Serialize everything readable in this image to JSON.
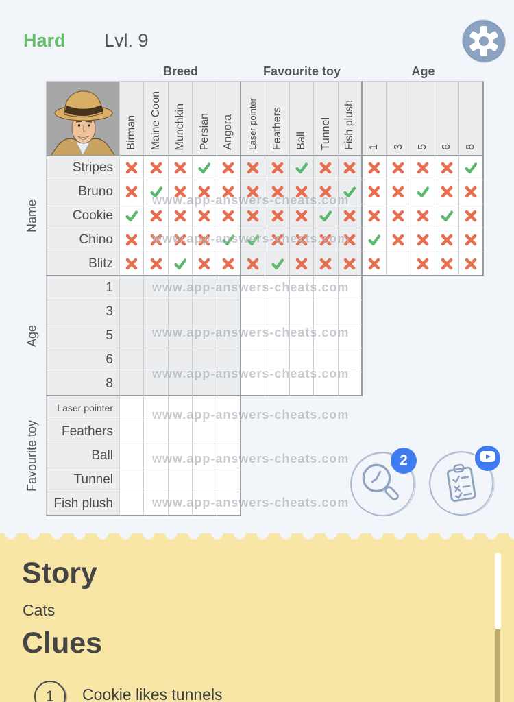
{
  "top": {
    "difficulty": "Hard",
    "level": "Lvl. 9"
  },
  "watermark": "www.app-answers-cheats.com",
  "colors": {
    "accent_green": "#68bf6b",
    "x_mark": "#e76f50",
    "check_mark": "#5cb96b",
    "badge_blue": "#3f7cf0",
    "panel_yellow": "#f7e6a6",
    "scrollbar_tan": "#bfab6e"
  },
  "icons": {
    "settings": "gear-icon",
    "avatar": "detective-avatar",
    "hint": "magnifier-clock-icon",
    "tasks": "clipboard-checklist-icon",
    "tasks_badge": "play-icon"
  },
  "grid": {
    "col_groups": [
      {
        "label": "Breed",
        "cols": [
          "Birman",
          "Maine Coon",
          "Munchkin",
          "Persian",
          "Angora"
        ]
      },
      {
        "label": "Favourite toy",
        "cols": [
          "Laser pointer",
          "Feathers",
          "Ball",
          "Tunnel",
          "Fish plush"
        ]
      },
      {
        "label": "Age",
        "cols": [
          "1",
          "3",
          "5",
          "6",
          "8"
        ]
      }
    ],
    "row_groups": [
      {
        "key": "name",
        "label": "Name",
        "rows": [
          "Stripes",
          "Bruno",
          "Cookie",
          "Chino",
          "Blitz"
        ]
      },
      {
        "key": "age",
        "label": "Age",
        "rows": [
          "1",
          "3",
          "5",
          "6",
          "8"
        ]
      },
      {
        "key": "toy",
        "label": "Favourite toy",
        "rows": [
          "Laser pointer",
          "Feathers",
          "Ball",
          "Tunnel",
          "Fish plush"
        ]
      }
    ],
    "marks": {
      "name": [
        [
          "x",
          "x",
          "x",
          "v",
          "x",
          "x",
          "x",
          "v",
          "x",
          "x",
          "x",
          "x",
          "x",
          "x",
          "v"
        ],
        [
          "x",
          "v",
          "x",
          "x",
          "x",
          "x",
          "x",
          "x",
          "x",
          "v",
          "x",
          "x",
          "v",
          "x",
          "x"
        ],
        [
          "v",
          "x",
          "x",
          "x",
          "x",
          "x",
          "x",
          "x",
          "v",
          "x",
          "x",
          "x",
          "x",
          "v",
          "x"
        ],
        [
          "x",
          "x",
          "x",
          "x",
          "v",
          "v",
          "x",
          "x",
          "x",
          "x",
          "v",
          "x",
          "x",
          "x",
          "x"
        ],
        [
          "x",
          "x",
          "v",
          "x",
          "x",
          "x",
          "v",
          "x",
          "x",
          "x",
          "x",
          "",
          "x",
          "x",
          "x"
        ]
      ],
      "age": [
        [
          "",
          "",
          "",
          "",
          "",
          "",
          "",
          "",
          "",
          ""
        ],
        [
          "",
          "",
          "",
          "",
          "",
          "",
          "",
          "",
          "",
          ""
        ],
        [
          "",
          "",
          "",
          "",
          "",
          "",
          "",
          "",
          "",
          ""
        ],
        [
          "",
          "",
          "",
          "",
          "",
          "",
          "",
          "",
          "",
          ""
        ],
        [
          "",
          "",
          "",
          "",
          "",
          "",
          "",
          "",
          "",
          ""
        ]
      ],
      "toy": [
        [
          "",
          "",
          "",
          "",
          ""
        ],
        [
          "",
          "",
          "",
          "",
          ""
        ],
        [
          "",
          "",
          "",
          "",
          ""
        ],
        [
          "",
          "",
          "",
          "",
          ""
        ],
        [
          "",
          "",
          "",
          "",
          ""
        ]
      ]
    }
  },
  "buttons": {
    "hint_badge": "2"
  },
  "story": {
    "title": "Story",
    "text": "Cats"
  },
  "clues": {
    "title": "Clues",
    "items": [
      {
        "num": "1",
        "text": "Cookie likes tunnels"
      }
    ]
  }
}
